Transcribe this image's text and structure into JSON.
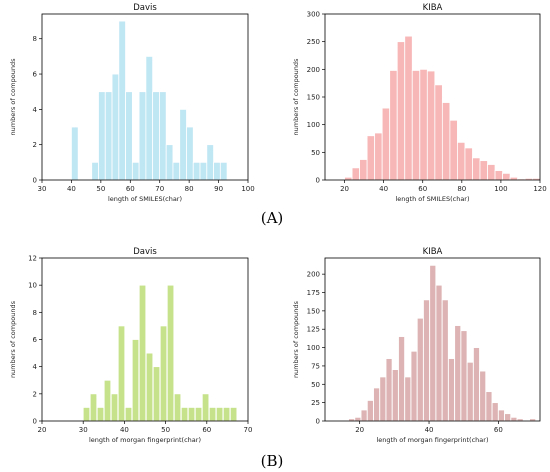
{
  "panels": {
    "A": "(A)",
    "B": "(B)"
  },
  "chart_data": [
    {
      "type": "bar",
      "title": "Davis",
      "xlabel": "length of SMILES(char)",
      "ylabel": "numbers of compounds",
      "xlim": [
        30,
        100
      ],
      "ylim": [
        0,
        9.4
      ],
      "xticks": [
        30,
        40,
        50,
        60,
        70,
        80,
        90,
        100
      ],
      "yticks": [
        0,
        2,
        4,
        6,
        8
      ],
      "bin_width": 2.3,
      "color": "#bfe6f3",
      "grid": false,
      "x": [
        40,
        44.6,
        46.9,
        49.2,
        51.5,
        53.8,
        56.1,
        58.4,
        60.7,
        63,
        65.3,
        67.6,
        69.9,
        72.2,
        74.5,
        76.8,
        79.1,
        81.4,
        83.7,
        86,
        88.3,
        90.6
      ],
      "values": [
        3,
        0,
        1,
        5,
        5,
        6,
        9,
        5,
        1,
        5,
        7,
        5,
        5,
        2,
        1,
        4,
        3,
        1,
        1,
        2,
        1,
        1
      ]
    },
    {
      "type": "bar",
      "title": "KIBA",
      "xlabel": "length of SMILES(char)",
      "ylabel": "numbers of compounds",
      "xlim": [
        10,
        120
      ],
      "ylim": [
        0,
        300
      ],
      "xticks": [
        20,
        40,
        60,
        80,
        100,
        120
      ],
      "yticks": [
        0,
        50,
        100,
        150,
        200,
        250,
        300
      ],
      "bin_width": 3.85,
      "color": "#f7b7b7",
      "grid": false,
      "x": [
        20,
        23.85,
        27.7,
        31.55,
        35.4,
        39.25,
        43.1,
        46.95,
        50.8,
        54.65,
        58.5,
        62.35,
        66.2,
        70.05,
        73.9,
        77.75,
        81.6,
        85.45,
        89.3,
        93.15,
        97,
        100.85,
        104.7,
        108.55,
        112.4,
        116.25
      ],
      "values": [
        5,
        22,
        37,
        80,
        85,
        130,
        198,
        250,
        260,
        198,
        200,
        197,
        172,
        140,
        108,
        68,
        58,
        40,
        35,
        28,
        17,
        12,
        5,
        2,
        3,
        3
      ]
    },
    {
      "type": "bar",
      "title": "Davis",
      "xlabel": "length of morgan fingerprint(char)",
      "ylabel": "numbers of compounds",
      "xlim": [
        20,
        70
      ],
      "ylim": [
        0,
        12
      ],
      "xticks": [
        20,
        30,
        40,
        50,
        60,
        70
      ],
      "yticks": [
        0,
        2,
        4,
        6,
        8,
        10,
        12
      ],
      "bin_width": 1.6,
      "color": "#c6e28a",
      "grid": false,
      "x": [
        30,
        31.7,
        33.4,
        35.1,
        36.8,
        38.5,
        40.2,
        41.9,
        43.6,
        45.3,
        47,
        48.7,
        50.4,
        52.1,
        53.8,
        55.5,
        57.2,
        58.9,
        60.6,
        62.3,
        64,
        65.7
      ],
      "values": [
        1,
        2,
        1,
        3,
        2,
        7,
        1,
        6,
        10,
        5,
        4,
        7,
        10,
        2,
        1,
        1,
        1,
        2,
        1,
        1,
        1,
        1
      ]
    },
    {
      "type": "bar",
      "title": "KIBA",
      "xlabel": "length of morgan fingerprint(char)",
      "ylabel": "numbers of compounds",
      "xlim": [
        10,
        72
      ],
      "ylim": [
        0,
        222
      ],
      "xticks": [
        20,
        40,
        60
      ],
      "yticks": [
        0,
        25,
        50,
        75,
        100,
        125,
        150,
        175,
        200
      ],
      "bin_width": 1.75,
      "color": "#ddb3b3",
      "grid": false,
      "x": [
        15,
        16.8,
        18.6,
        20.4,
        22.2,
        24,
        25.8,
        27.6,
        29.4,
        31.2,
        33,
        34.8,
        36.6,
        38.4,
        40.2,
        42,
        43.8,
        45.6,
        47.4,
        49.2,
        51,
        52.8,
        54.6,
        56.4,
        58.2,
        60,
        61.8,
        63.6,
        65.4,
        67.2,
        69
      ],
      "values": [
        1,
        3,
        5,
        15,
        28,
        45,
        60,
        85,
        70,
        115,
        60,
        95,
        140,
        165,
        212,
        185,
        165,
        85,
        130,
        123,
        80,
        100,
        68,
        40,
        25,
        15,
        10,
        5,
        3,
        1,
        3
      ]
    }
  ]
}
